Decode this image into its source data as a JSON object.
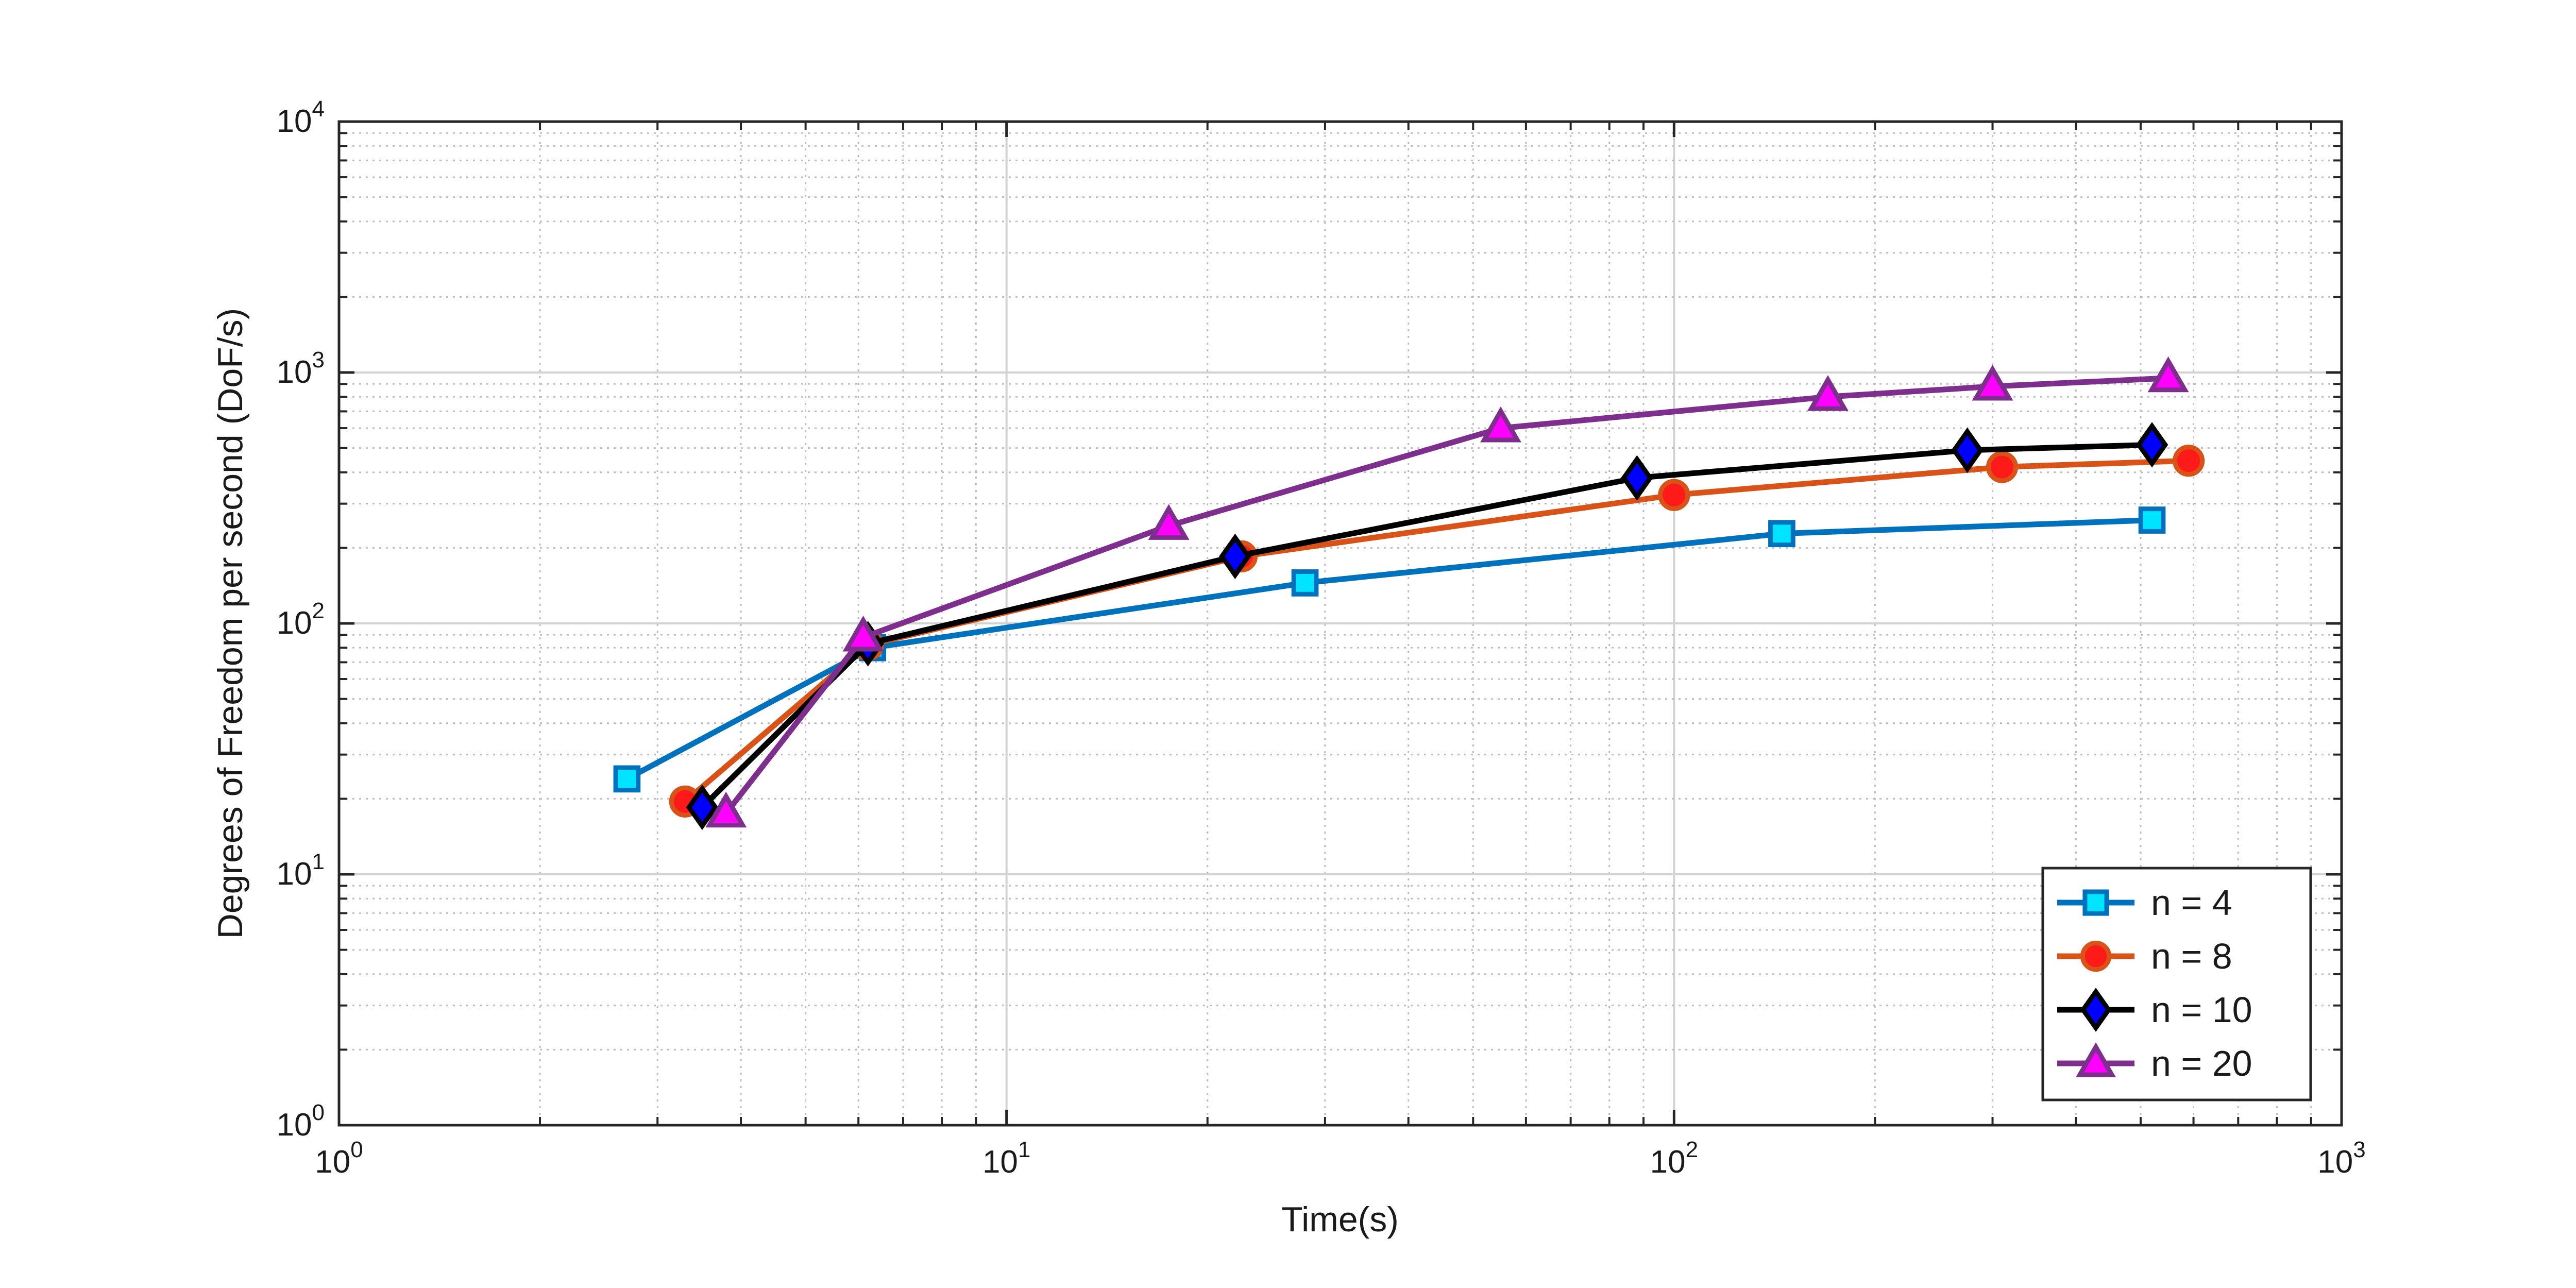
{
  "chart_data": {
    "type": "line",
    "title": "",
    "xlabel": "Time(s)",
    "ylabel": "Degrees of Freedom per second (DoF/s)",
    "x_scale": "log",
    "y_scale": "log",
    "xlim": [
      1,
      1000
    ],
    "ylim": [
      1,
      10000
    ],
    "grid": true,
    "legend_position": "bottom-right",
    "x_ticks": [
      {
        "base": "10",
        "exp": "0",
        "value": 1
      },
      {
        "base": "10",
        "exp": "1",
        "value": 10
      },
      {
        "base": "10",
        "exp": "2",
        "value": 100
      },
      {
        "base": "10",
        "exp": "3",
        "value": 1000
      }
    ],
    "y_ticks": [
      {
        "base": "10",
        "exp": "0",
        "value": 1
      },
      {
        "base": "10",
        "exp": "1",
        "value": 10
      },
      {
        "base": "10",
        "exp": "2",
        "value": 100
      },
      {
        "base": "10",
        "exp": "3",
        "value": 1000
      },
      {
        "base": "10",
        "exp": "4",
        "value": 10000
      }
    ],
    "series": [
      {
        "name": "n = 4",
        "line_color": "#0072bd",
        "marker": "square",
        "marker_fill": "#00e5ff",
        "marker_edge": "#0072bd",
        "points": [
          [
            2.7,
            24
          ],
          [
            6.3,
            80
          ],
          [
            28,
            145
          ],
          [
            145,
            228
          ],
          [
            520,
            258
          ]
        ]
      },
      {
        "name": "n = 8",
        "line_color": "#d95319",
        "marker": "circle",
        "marker_fill": "#ff1a1a",
        "marker_edge": "#d95319",
        "points": [
          [
            3.3,
            19.5
          ],
          [
            6.2,
            82
          ],
          [
            22.5,
            185
          ],
          [
            100,
            325
          ],
          [
            310,
            420
          ],
          [
            590,
            445
          ]
        ]
      },
      {
        "name": "n = 10",
        "line_color": "#000000",
        "marker": "diamond",
        "marker_fill": "#0000ff",
        "marker_edge": "#000000",
        "points": [
          [
            3.5,
            18.5
          ],
          [
            6.2,
            83
          ],
          [
            22,
            185
          ],
          [
            88,
            380
          ],
          [
            275,
            490
          ],
          [
            520,
            515
          ]
        ]
      },
      {
        "name": "n = 20",
        "line_color": "#7e2f8e",
        "marker": "triangle",
        "marker_fill": "#ff00ff",
        "marker_edge": "#7e2f8e",
        "points": [
          [
            3.8,
            17.5
          ],
          [
            6.1,
            88
          ],
          [
            17.5,
            245
          ],
          [
            55,
            600
          ],
          [
            170,
            800
          ],
          [
            300,
            880
          ],
          [
            550,
            950
          ]
        ]
      }
    ]
  }
}
